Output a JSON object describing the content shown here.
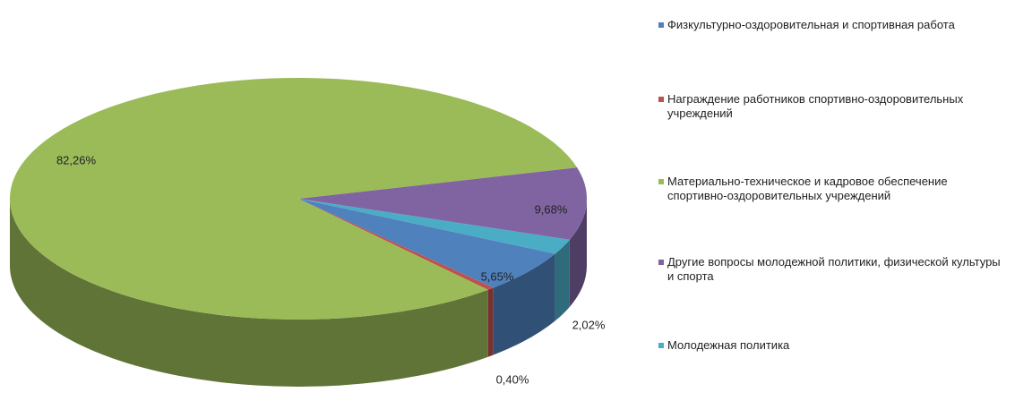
{
  "chart_data": {
    "type": "pie3d",
    "categories": [
      "Физкультурно-оздоровительная и спортивная работа",
      "Награждение работников спортивно-оздоровительных учреждений",
      "Материально-техническое и кадровое обеспечение спортивно-оздоровительных учреждений",
      "Другие вопросы молодежной политики, физической культуры и спорта",
      "Молодежная политика"
    ],
    "values": [
      5.65,
      0.4,
      82.26,
      9.68,
      2.02
    ],
    "value_labels": [
      "5,65%",
      "0,40%",
      "82,26%",
      "9,68%",
      "2,02%"
    ],
    "colors": [
      "#4f81bd",
      "#c0504d",
      "#9bbb59",
      "#8064a2",
      "#4bacc6"
    ],
    "legend": "right"
  }
}
